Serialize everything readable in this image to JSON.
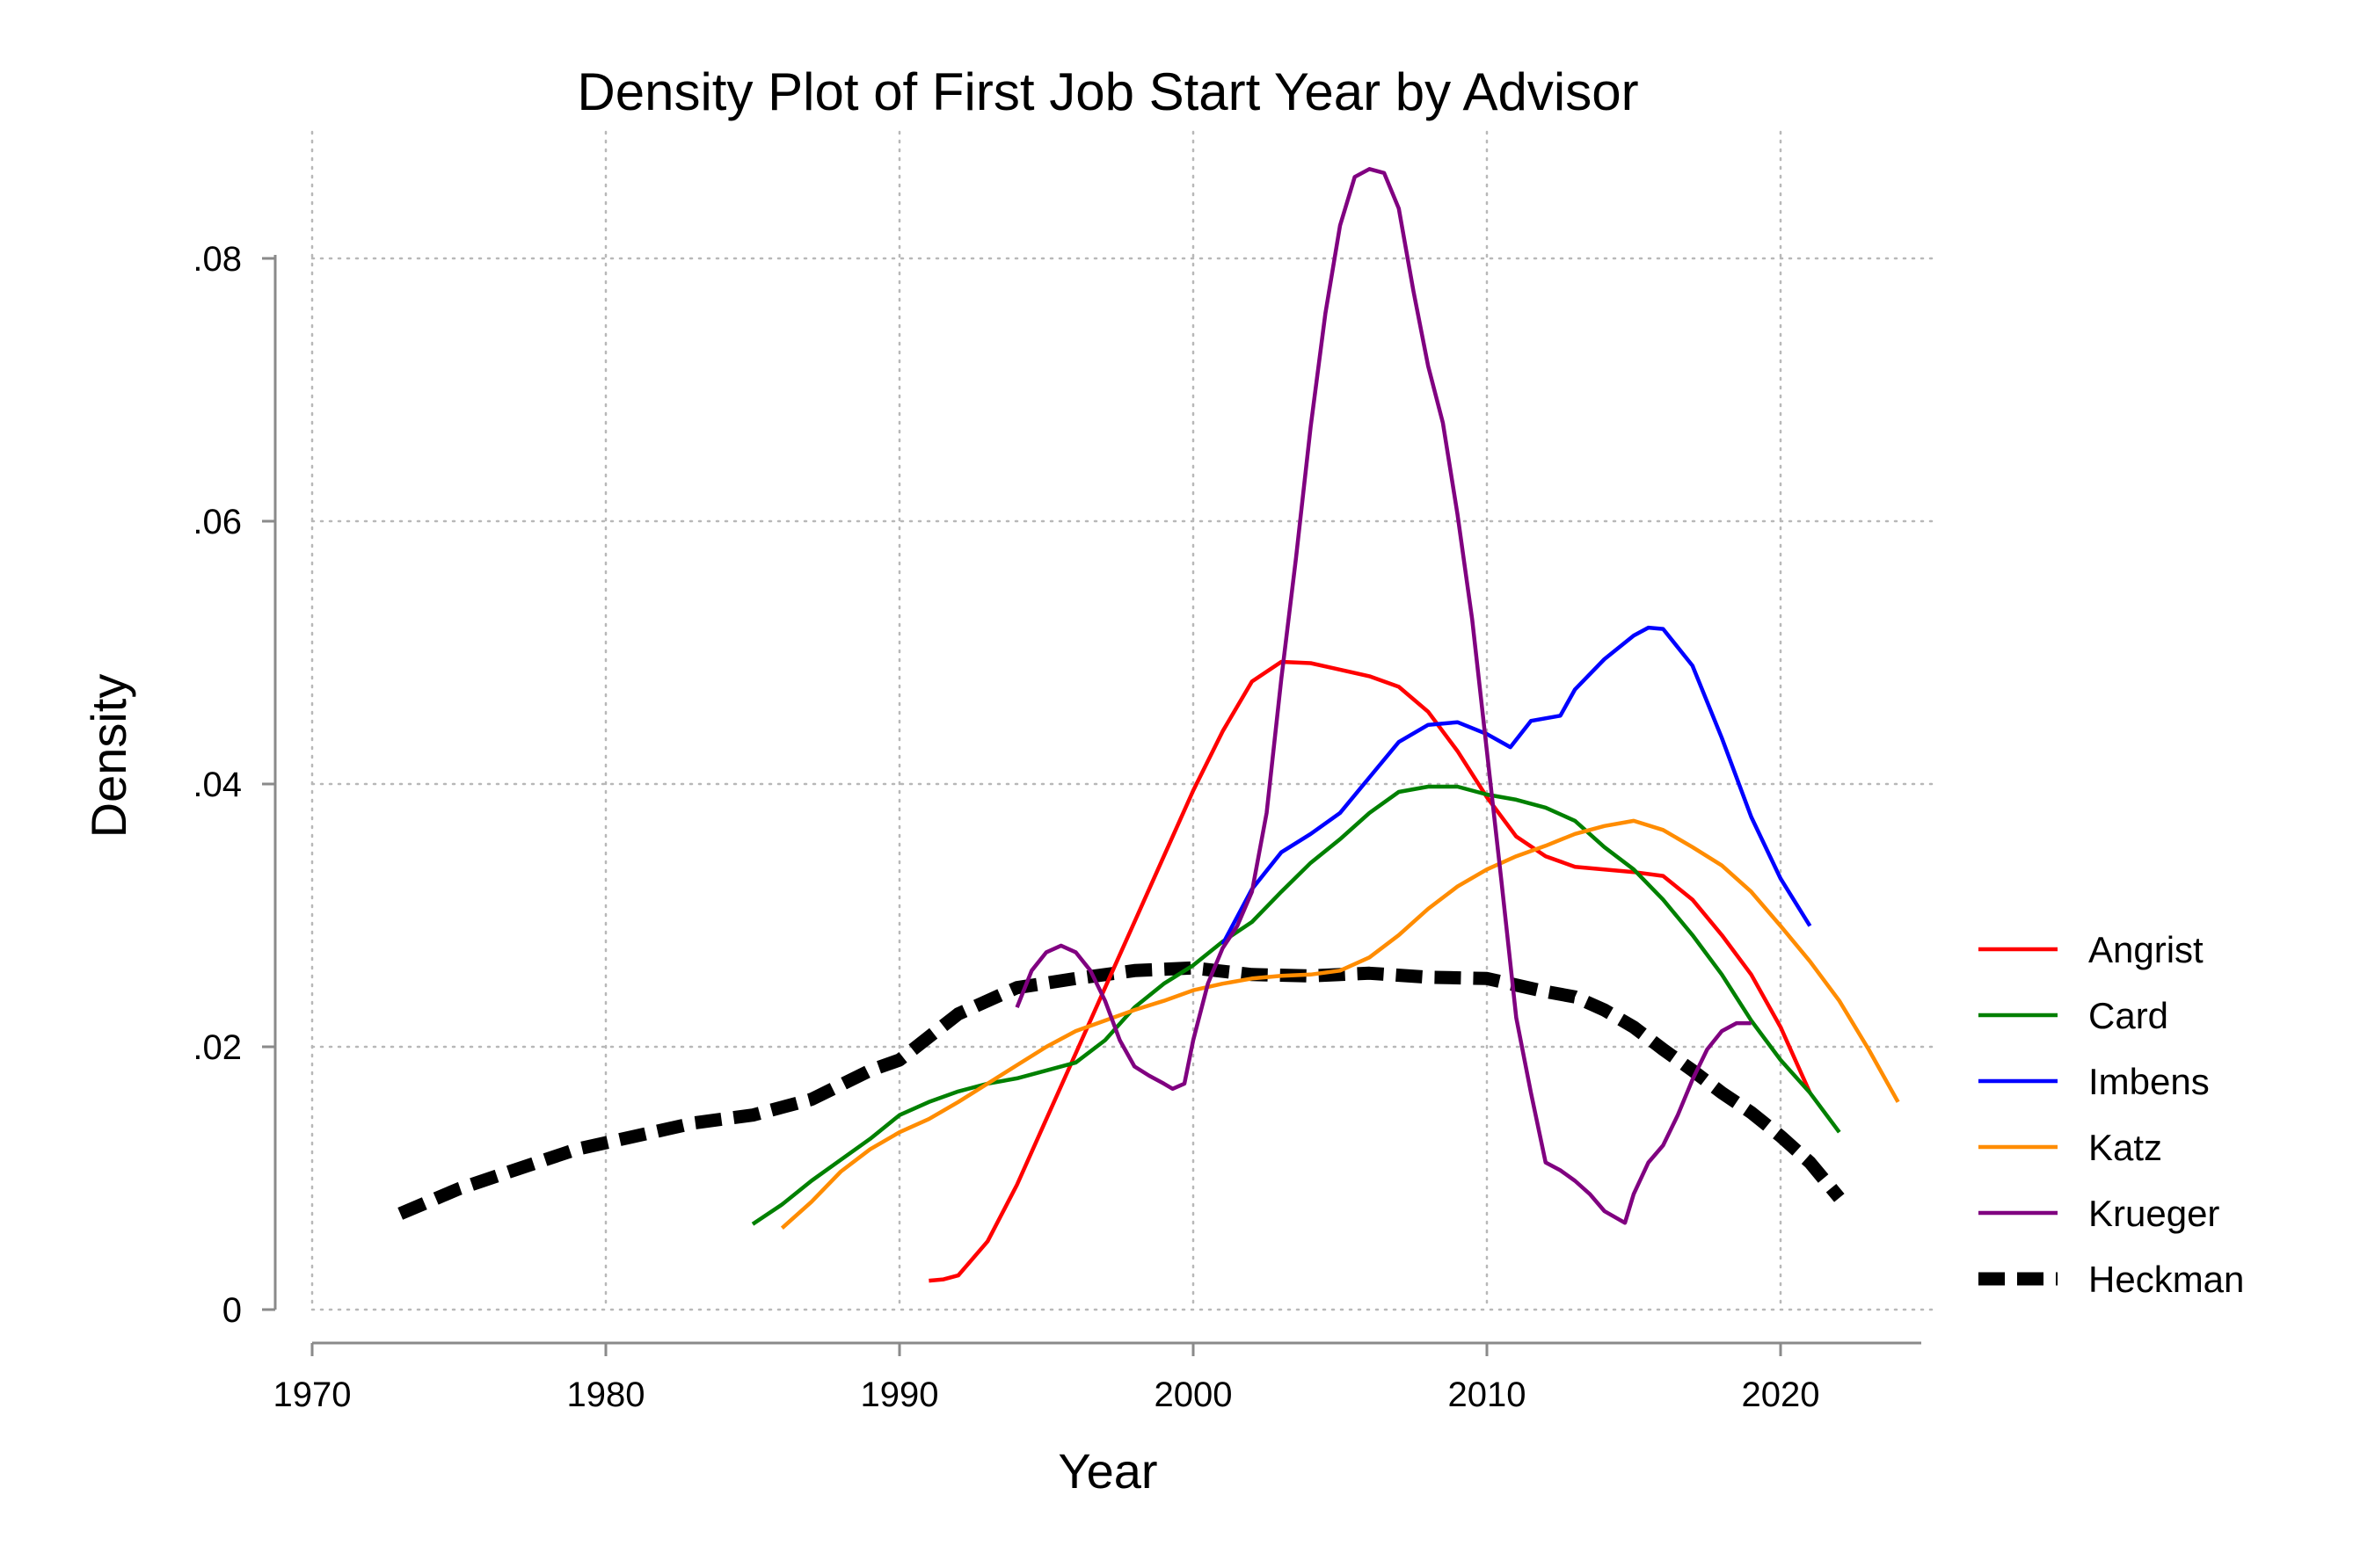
{
  "chart_data": {
    "type": "line",
    "title": "Density Plot of First Job Start Year by Advisor",
    "xlabel": "Year",
    "ylabel": "Density",
    "xlim": [
      1970,
      2025
    ],
    "ylim": [
      0,
      0.088
    ],
    "xticks": [
      1970,
      1980,
      1990,
      2000,
      2010,
      2020
    ],
    "xtick_labels": [
      "1970",
      "1980",
      "1990",
      "2000",
      "2010",
      "2020"
    ],
    "yticks": [
      0,
      0.02,
      0.04,
      0.06,
      0.08
    ],
    "ytick_labels": [
      "0",
      ".02",
      ".04",
      ".06",
      ".08"
    ],
    "grid": true,
    "legend_position": "right",
    "series": [
      {
        "name": "Angrist",
        "color": "#ff0000",
        "style": "solid",
        "x": [
          1991,
          1991.5,
          1992,
          1993,
          1994,
          1995,
          1996,
          1997,
          1998,
          1999,
          2000,
          2001,
          2002,
          2003,
          2004,
          2005,
          2006,
          2007,
          2008,
          2009,
          2010,
          2011,
          2012,
          2013,
          2014,
          2015,
          2016,
          2017,
          2018,
          2019,
          2020,
          2021
        ],
        "y": [
          0.0022,
          0.0023,
          0.0026,
          0.0052,
          0.0095,
          0.0145,
          0.0195,
          0.0245,
          0.0295,
          0.0345,
          0.0395,
          0.044,
          0.0478,
          0.0493,
          0.0492,
          0.0487,
          0.0482,
          0.0474,
          0.0455,
          0.0425,
          0.039,
          0.036,
          0.0345,
          0.0337,
          0.0335,
          0.0333,
          0.033,
          0.0312,
          0.0285,
          0.0255,
          0.0215,
          0.0165
        ]
      },
      {
        "name": "Card",
        "color": "#008000",
        "style": "solid",
        "x": [
          1985,
          1986,
          1987,
          1988,
          1989,
          1990,
          1991,
          1992,
          1993,
          1994,
          1995,
          1996,
          1997,
          1998,
          1999,
          2000,
          2001,
          2002,
          2003,
          2004,
          2005,
          2006,
          2007,
          2008,
          2009,
          2010,
          2011,
          2012,
          2013,
          2014,
          2015,
          2016,
          2017,
          2018,
          2019,
          2020,
          2021,
          2022
        ],
        "y": [
          0.0065,
          0.008,
          0.0098,
          0.0114,
          0.013,
          0.0148,
          0.0158,
          0.0166,
          0.0172,
          0.0176,
          0.0182,
          0.0188,
          0.0205,
          0.023,
          0.0248,
          0.0262,
          0.028,
          0.0295,
          0.0318,
          0.034,
          0.0358,
          0.0378,
          0.0394,
          0.0398,
          0.0398,
          0.0392,
          0.0388,
          0.0382,
          0.0372,
          0.0352,
          0.0335,
          0.0312,
          0.0285,
          0.0255,
          0.022,
          0.019,
          0.0165,
          0.0135
        ]
      },
      {
        "name": "Imbens",
        "color": "#0000ff",
        "style": "solid",
        "x": [
          2001,
          2002,
          2003,
          2004,
          2005,
          2006,
          2007,
          2008,
          2009,
          2010,
          2010.8,
          2011.5,
          2012.5,
          2013,
          2014,
          2015,
          2015.5,
          2016,
          2017,
          2018,
          2019,
          2020,
          2021
        ],
        "y": [
          0.0278,
          0.032,
          0.0348,
          0.0362,
          0.0378,
          0.0405,
          0.0432,
          0.0445,
          0.0447,
          0.0438,
          0.0428,
          0.0448,
          0.0452,
          0.0472,
          0.0495,
          0.0513,
          0.0519,
          0.0518,
          0.049,
          0.0435,
          0.0375,
          0.0328,
          0.0292
        ]
      },
      {
        "name": "Katz",
        "color": "#ff8c00",
        "style": "solid",
        "x": [
          1986,
          1987,
          1988,
          1989,
          1990,
          1991,
          1992,
          1993,
          1994,
          1995,
          1996,
          1997,
          1998,
          1999,
          2000,
          2001,
          2002,
          2003,
          2004,
          2005,
          2006,
          2007,
          2008,
          2009,
          2010,
          2011,
          2012,
          2013,
          2014,
          2015,
          2016,
          2017,
          2018,
          2019,
          2020,
          2021,
          2022,
          2023,
          2024
        ],
        "y": [
          0.0062,
          0.0082,
          0.0105,
          0.0122,
          0.0135,
          0.0145,
          0.0158,
          0.0172,
          0.0186,
          0.02,
          0.0212,
          0.022,
          0.0228,
          0.0235,
          0.0243,
          0.0248,
          0.0252,
          0.0254,
          0.0255,
          0.0258,
          0.0268,
          0.0285,
          0.0305,
          0.0322,
          0.0335,
          0.0345,
          0.0353,
          0.0362,
          0.0368,
          0.0372,
          0.0365,
          0.0352,
          0.0338,
          0.0318,
          0.0292,
          0.0265,
          0.0235,
          0.0198,
          0.0158
        ]
      },
      {
        "name": "Krueger",
        "color": "#800080",
        "style": "solid",
        "x": [
          1994,
          1994.5,
          1995,
          1995.5,
          1996,
          1996.5,
          1997,
          1997.5,
          1998,
          1998.5,
          1999,
          1999.3,
          1999.7,
          2000,
          2000.5,
          2001,
          2001.5,
          2002,
          2002.5,
          2003,
          2003.5,
          2004,
          2004.5,
          2005,
          2005.5,
          2006,
          2006.5,
          2007,
          2007.5,
          2008,
          2008.5,
          2009,
          2009.5,
          2010,
          2010.5,
          2011,
          2011.5,
          2012,
          2012.5,
          2013,
          2013.5,
          2014,
          2014.7,
          2015,
          2015.5,
          2016,
          2016.5,
          2017,
          2017.5,
          2018,
          2018.5,
          2019
        ],
        "y": [
          0.023,
          0.0258,
          0.0272,
          0.0277,
          0.0272,
          0.0258,
          0.0235,
          0.0205,
          0.0185,
          0.0178,
          0.0172,
          0.0168,
          0.0172,
          0.0205,
          0.0248,
          0.0275,
          0.0292,
          0.0318,
          0.0378,
          0.048,
          0.0572,
          0.0672,
          0.0758,
          0.0825,
          0.0862,
          0.0868,
          0.0865,
          0.0838,
          0.0775,
          0.0718,
          0.0675,
          0.0605,
          0.0525,
          0.0425,
          0.0325,
          0.0222,
          0.0165,
          0.0112,
          0.0106,
          0.0098,
          0.0088,
          0.0075,
          0.0066,
          0.0088,
          0.0112,
          0.0125,
          0.0148,
          0.0175,
          0.0198,
          0.0212,
          0.0218,
          0.0218
        ]
      },
      {
        "name": "Heckman",
        "color": "#000000",
        "style": "dashed",
        "x": [
          1973,
          1975,
          1977,
          1979,
          1981,
          1983,
          1985,
          1987,
          1989,
          1990,
          1992,
          1994,
          1996,
          1998,
          2000,
          2002,
          2004,
          2006,
          2008,
          2010,
          2012,
          2013,
          2014,
          2015,
          2016,
          2017,
          2018,
          2019,
          2020,
          2021,
          2022
        ],
        "y": [
          0.0073,
          0.0092,
          0.0107,
          0.0122,
          0.0132,
          0.0142,
          0.0148,
          0.016,
          0.0182,
          0.019,
          0.0225,
          0.0245,
          0.0252,
          0.0258,
          0.026,
          0.0255,
          0.0254,
          0.0256,
          0.0253,
          0.0252,
          0.0242,
          0.0238,
          0.0228,
          0.0215,
          0.0198,
          0.0182,
          0.0165,
          0.015,
          0.0132,
          0.0112,
          0.0085
        ]
      }
    ]
  }
}
